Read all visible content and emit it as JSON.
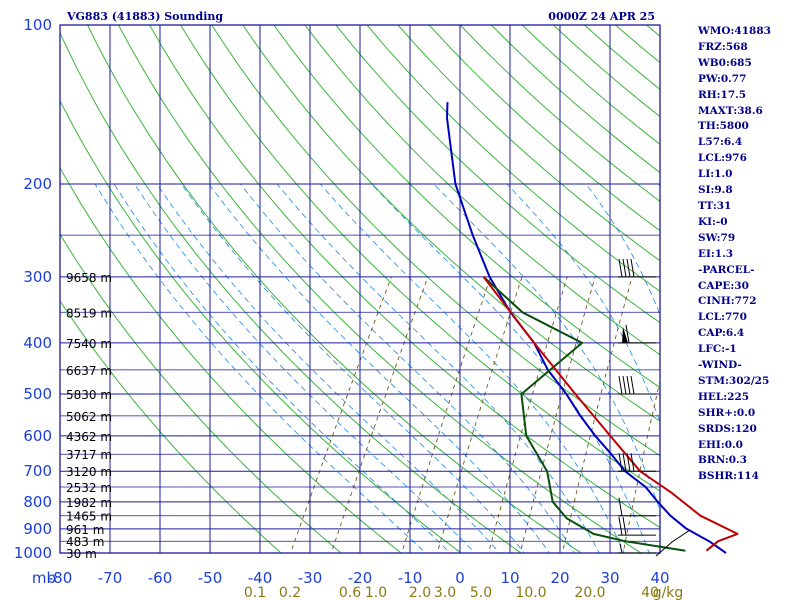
{
  "header": {
    "station": "VG883 (41883) Sounding",
    "time": "0000Z 24 APR 25"
  },
  "indices": [
    "WMO:41883",
    "FRZ:568",
    "WB0:685",
    "PW:0.77",
    "RH:17.5",
    "MAXT:38.6",
    "TH:5800",
    "L57:6.4",
    "LCL:976",
    "LI:1.0",
    "SI:9.8",
    "TT:31",
    "KI:-0",
    "SW:79",
    "EI:1.3",
    "-PARCEL-",
    "CAPE:30",
    "CINH:772",
    "LCL:770",
    "CAP:6.4",
    "LFC:-1",
    "-WIND-",
    "STM:302/25",
    "HEL:225",
    "SHR+:0.0",
    "SRDS:120",
    "EHI:0.0",
    "BRN:0.3",
    "BSHR:114"
  ],
  "chart_data": {
    "type": "line",
    "subtype": "skew-T log-P sounding",
    "x_axis": {
      "label": "",
      "unit_label": "mb",
      "range": [
        -80,
        0
      ],
      "ticks": [
        "-80",
        "-70",
        "-60",
        "-50",
        "-40",
        "-30",
        "-20",
        "-10",
        "0",
        "10",
        "20",
        "30",
        "40"
      ]
    },
    "y_axis": {
      "label": "",
      "scale": "log",
      "range": [
        1000,
        100
      ],
      "ticks": [
        1000,
        900,
        800,
        700,
        600,
        500,
        400,
        300,
        200,
        100
      ]
    },
    "mixing_ratio_axis": {
      "unit_label": "g/kg",
      "labels": [
        "0.1",
        "0.2",
        "0.6",
        "1.0",
        "2.0",
        "3.0",
        "5.0",
        "10.0",
        "20.0",
        "40"
      ]
    },
    "height_labels": [
      {
        "p": 300,
        "label": "9658 m"
      },
      {
        "p": 350,
        "label": "8519 m"
      },
      {
        "p": 400,
        "label": "7540 m"
      },
      {
        "p": 450,
        "label": "6637 m"
      },
      {
        "p": 500,
        "label": "5830 m"
      },
      {
        "p": 550,
        "label": "5062 m"
      },
      {
        "p": 600,
        "label": "4362 m"
      },
      {
        "p": 650,
        "label": "3717 m"
      },
      {
        "p": 700,
        "label": "3120 m"
      },
      {
        "p": 750,
        "label": "2532 m"
      },
      {
        "p": 800,
        "label": "1982 m"
      },
      {
        "p": 850,
        "label": "1465 m"
      },
      {
        "p": 900,
        "label": "961 m"
      },
      {
        "p": 950,
        "label": "483 m"
      },
      {
        "p": 1000,
        "label": "30 m"
      }
    ],
    "series": [
      {
        "color": "#0000c0",
        "points": [
          {
            "p": 1000,
            "t": 31
          },
          {
            "p": 950,
            "t": 27
          },
          {
            "p": 900,
            "t": 22
          },
          {
            "p": 850,
            "t": 18
          },
          {
            "p": 800,
            "t": 14.5
          },
          {
            "p": 750,
            "t": 11
          },
          {
            "p": 700,
            "t": 6
          },
          {
            "p": 650,
            "t": 2
          },
          {
            "p": 600,
            "t": -2.5
          },
          {
            "p": 550,
            "t": -7
          },
          {
            "p": 500,
            "t": -11.5
          },
          {
            "p": 450,
            "t": -17
          },
          {
            "p": 400,
            "t": -22
          },
          {
            "p": 350,
            "t": -29
          },
          {
            "p": 300,
            "t": -36
          },
          {
            "p": 250,
            "t": -43
          },
          {
            "p": 200,
            "t": -51
          },
          {
            "p": 150,
            "t": -59
          },
          {
            "p": 140,
            "t": -60.5
          }
        ]
      },
      {
        "color": "#0a4f0a",
        "points": [
          {
            "p": 990,
            "t": 24
          },
          {
            "p": 950,
            "t": 13
          },
          {
            "p": 920,
            "t": 7
          },
          {
            "p": 860,
            "t": 1
          },
          {
            "p": 800,
            "t": -3
          },
          {
            "p": 700,
            "t": -7
          },
          {
            "p": 600,
            "t": -14
          },
          {
            "p": 500,
            "t": -19
          },
          {
            "p": 400,
            "t": -14
          },
          {
            "p": 350,
            "t": -27
          },
          {
            "p": 300,
            "t": -37
          }
        ]
      },
      {
        "color": "#c00000",
        "points": [
          {
            "p": 990,
            "t": 27.5
          },
          {
            "p": 950,
            "t": 28.5
          },
          {
            "p": 920,
            "t": 31
          },
          {
            "p": 850,
            "t": 23
          },
          {
            "p": 770,
            "t": 16
          },
          {
            "p": 700,
            "t": 8.5
          },
          {
            "p": 600,
            "t": 0
          },
          {
            "p": 500,
            "t": -10
          },
          {
            "p": 400,
            "t": -22
          },
          {
            "p": 300,
            "t": -37
          }
        ]
      }
    ],
    "wind_barbs": [
      {
        "p": 300,
        "flags": 0,
        "full": 4,
        "half": 0
      },
      {
        "p": 400,
        "flags": 1,
        "full": 1,
        "half": 0
      },
      {
        "p": 500,
        "flags": 0,
        "full": 4,
        "half": 0
      },
      {
        "p": 700,
        "flags": 0,
        "full": 4,
        "half": 0
      },
      {
        "p": 850,
        "flags": 0,
        "full": 1,
        "half": 0
      },
      {
        "p": 925,
        "flags": 0,
        "full": 2,
        "half": 0
      },
      {
        "p": 1000,
        "flags": 0,
        "full": 0,
        "half": 1
      }
    ],
    "grid": true,
    "colors": {
      "frame": "#1a1aa0",
      "isotherm": "#1a1aa0",
      "dry_adiabat": "#3cb43c",
      "moist_adiabat": "#1e88e5",
      "mixing_ratio": "#6b5a1a",
      "temperature": "#0000c0",
      "dewpoint": "#0a4f0a",
      "parcel": "#c00000",
      "axis_text": "#1c3fd6",
      "header_text": "#00008b"
    }
  }
}
